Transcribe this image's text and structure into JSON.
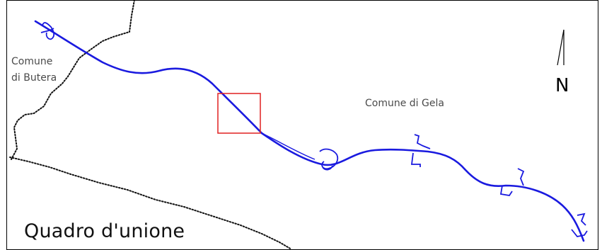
{
  "map": {
    "labels": {
      "butera_line1": "Comune",
      "butera_line2": "di Butera",
      "gela": "Comune di Gela",
      "north": "N",
      "title": "Quadro d'unione"
    },
    "colors": {
      "road": "#1a1adf",
      "boundary": "#111111",
      "highlight_box": "#e02020",
      "frame": "#000000"
    },
    "icons": [
      "north-arrow-icon"
    ]
  }
}
